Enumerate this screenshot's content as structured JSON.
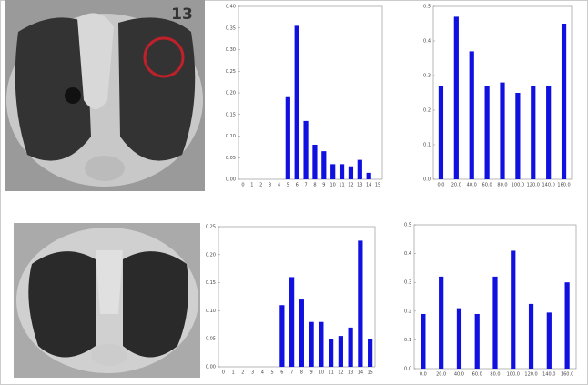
{
  "image_label": "13",
  "chart_data": [
    {
      "type": "bar",
      "color": "#1010e0",
      "categories": [
        "0",
        "1",
        "2",
        "3",
        "4",
        "5",
        "6",
        "7",
        "8",
        "9",
        "10",
        "11",
        "12",
        "13",
        "14",
        "15"
      ],
      "values": [
        0,
        0,
        0,
        0,
        0,
        0.19,
        0.355,
        0.135,
        0.08,
        0.065,
        0.035,
        0.035,
        0.03,
        0.045,
        0.015,
        0
      ],
      "ylim": [
        0,
        0.4
      ],
      "yticks": [
        {
          "value": 0,
          "label": "0.00"
        },
        0.05,
        {
          "value": 0.1,
          "label": "0.10"
        },
        0.15,
        {
          "value": 0.2,
          "label": "0.20"
        },
        0.25,
        {
          "value": 0.3,
          "label": "0.30"
        },
        0.35,
        {
          "value": 0.4,
          "label": "0.40"
        }
      ]
    },
    {
      "type": "bar",
      "color": "#1010e0",
      "categories": [
        "0.0",
        "20.0",
        "40.0",
        "60.0",
        "80.0",
        "100.0",
        "120.0",
        "140.0",
        "160.0"
      ],
      "values": [
        0.27,
        0.47,
        0.37,
        0.27,
        0.28,
        0.25,
        0.27,
        0.27,
        0.45
      ],
      "ylim": [
        0,
        0.5
      ],
      "yticks": [
        {
          "value": 0,
          "label": "0.0"
        },
        0.1,
        0.2,
        0.3,
        0.4,
        0.5
      ]
    },
    {
      "type": "bar",
      "color": "#1010e0",
      "categories": [
        "0",
        "1",
        "2",
        "3",
        "4",
        "5",
        "6",
        "7",
        "8",
        "9",
        "10",
        "11",
        "12",
        "13",
        "14",
        "15"
      ],
      "values": [
        0,
        0,
        0,
        0,
        0,
        0,
        0.11,
        0.16,
        0.12,
        0.08,
        0.08,
        0.05,
        0.055,
        0.07,
        0.225,
        0.05
      ],
      "ylim": [
        0,
        0.25
      ],
      "yticks": [
        {
          "value": 0,
          "label": "0.00"
        },
        0.05,
        {
          "value": 0.1,
          "label": "0.10"
        },
        0.15,
        {
          "value": 0.2,
          "label": "0.20"
        },
        0.25
      ]
    },
    {
      "type": "bar",
      "color": "#1010e0",
      "categories": [
        "0.0",
        "20.0",
        "40.0",
        "60.0",
        "80.0",
        "100.0",
        "120.0",
        "140.0",
        "160.0"
      ],
      "values": [
        0.19,
        0.32,
        0.21,
        0.19,
        0.32,
        0.41,
        0.225,
        0.195,
        0.3
      ],
      "ylim": [
        0,
        0.5
      ],
      "yticks": [
        {
          "value": 0,
          "label": "0.0"
        },
        0.1,
        0.2,
        0.3,
        0.4,
        0.5
      ]
    }
  ]
}
